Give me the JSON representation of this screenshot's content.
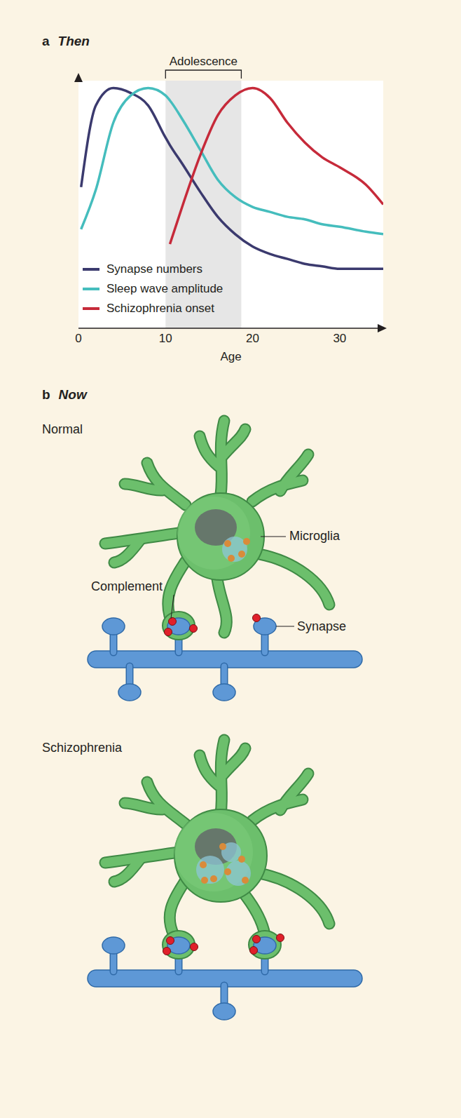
{
  "chart_data": {
    "type": "line",
    "panel_label": "a",
    "title": "Then",
    "xlabel": "Age",
    "x": [
      0.3,
      2,
      4,
      6,
      8,
      10,
      10.5,
      12,
      14,
      16,
      18,
      20,
      22,
      24,
      26,
      28,
      30,
      33,
      35
    ],
    "series": [
      {
        "name": "Synapse numbers",
        "color": "#3b3a6e",
        "values": [
          57,
          90,
          97,
          95,
          90,
          77,
          74,
          66,
          55,
          45,
          38,
          33,
          30,
          28,
          26,
          25,
          24,
          24,
          24
        ]
      },
      {
        "name": "Sleep wave amplitude",
        "color": "#45bdbd",
        "values": [
          40,
          56,
          83,
          94,
          97,
          94,
          92,
          84,
          72,
          60,
          53,
          49,
          47,
          45,
          44,
          42,
          41,
          39,
          38
        ]
      },
      {
        "name": "Schizophrenia onset",
        "color": "#c62a3a",
        "values": [
          null,
          null,
          null,
          null,
          null,
          null,
          34,
          50,
          70,
          86,
          94,
          97,
          93,
          83,
          75,
          69,
          65,
          58,
          50
        ]
      }
    ],
    "xlim": [
      0,
      35
    ],
    "xticks": [
      0,
      10,
      20,
      30
    ],
    "ylim": [
      0,
      100
    ],
    "tick_labels": "x",
    "grid": false,
    "legend": "lower left",
    "annotations": [
      {
        "text": "Adolescence",
        "x_range": [
          10,
          18.7
        ]
      }
    ]
  },
  "diagram": {
    "panel_label": "b",
    "title": "Now",
    "panels": [
      {
        "title": "Normal",
        "callouts": [
          "Microglia",
          "Complement",
          "Synapse"
        ]
      },
      {
        "title": "Schizophrenia"
      }
    ]
  }
}
